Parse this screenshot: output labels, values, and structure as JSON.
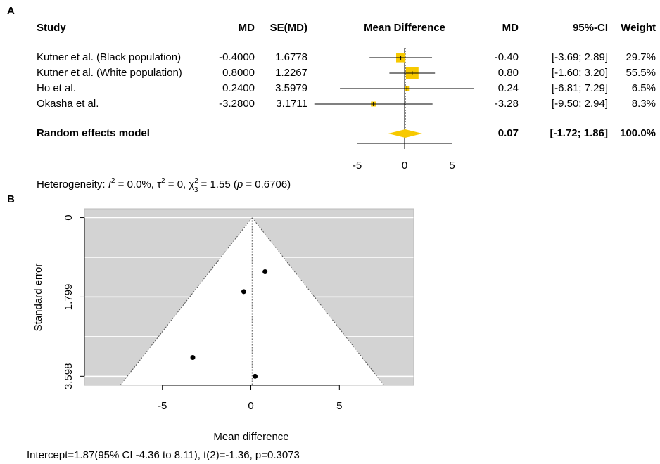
{
  "chart_data": [
    {
      "type": "forest",
      "panel_label": "A",
      "columns": [
        "Study",
        "MD",
        "SE(MD)",
        "Mean Difference",
        "MD",
        "95%-CI",
        "Weight"
      ],
      "categories": [
        "Kutner et al. (Black population)",
        "Kutner et al. (White population)",
        "Ho et al.",
        "Okasha et al."
      ],
      "md": [
        -0.4,
        0.8,
        0.24,
        -3.28
      ],
      "md_labels": [
        "-0.4000",
        "0.8000",
        "0.2400",
        "-3.2800"
      ],
      "md_labels_short": [
        "-0.40",
        "0.80",
        "0.24",
        "-3.28"
      ],
      "se": [
        1.6778,
        1.2267,
        3.5979,
        3.1711
      ],
      "ci_lower": [
        -3.69,
        -1.6,
        -6.81,
        -9.5
      ],
      "ci_upper": [
        2.89,
        3.2,
        7.29,
        2.94
      ],
      "ci_labels": [
        "[-3.69; 2.89]",
        "[-1.60; 3.20]",
        "[-6.81; 7.29]",
        "[-9.50; 2.94]"
      ],
      "weights": [
        29.7,
        55.5,
        6.5,
        8.3
      ],
      "weight_labels": [
        "29.7%",
        "55.5%",
        "6.5%",
        "8.3%"
      ],
      "pooled": {
        "name": "Random effects model",
        "md": 0.07,
        "md_label": "0.07",
        "ci_lower": -1.72,
        "ci_upper": 1.86,
        "ci_label": "[-1.72; 1.86]",
        "weight": 100,
        "weight_label": "100.0%"
      },
      "xlim": [
        -5,
        5
      ],
      "xticks": [
        -5,
        0,
        5
      ],
      "color": "#f7c900",
      "heterogeneity": [
        {
          "text": "Heterogeneity: "
        },
        {
          "text": "I",
          "format": "italic"
        },
        {
          "text": "2",
          "format": "sup"
        },
        {
          "text": " = 0.0%, "
        },
        {
          "text": "τ"
        },
        {
          "text": "2",
          "format": "sup"
        },
        {
          "text": " = 0, "
        },
        {
          "text": "χ"
        },
        {
          "text": "2",
          "format": "sup"
        },
        {
          "text": "3",
          "format": "sub"
        },
        {
          "text": " = 1.55 ("
        },
        {
          "text": "p",
          "format": "italic"
        },
        {
          "text": " = 0.6706)"
        }
      ]
    },
    {
      "type": "funnel",
      "panel_label": "B",
      "x": [
        -0.4,
        0.8,
        0.24,
        -3.28
      ],
      "values": [
        1.6778,
        1.2267,
        3.5979,
        3.1711
      ],
      "center": 0.07,
      "z": 1.96,
      "xlim": [
        -9.4,
        9.2
      ],
      "xticks": [
        -5,
        0,
        5
      ],
      "ylim": [
        -0.2,
        3.8
      ],
      "yticks": [
        0,
        1.799,
        3.598
      ],
      "y_reversed": true,
      "grid_y": [
        0,
        0.8995,
        1.799,
        2.6985,
        3.598
      ],
      "xlabel": "Mean difference",
      "ylabel": "Standard error",
      "note": "Intercept=1.87(95% CI -4.36 to 8.11), t(2)=-1.36, p=0.3073",
      "background": "#d3d3d3",
      "color": "#000000"
    }
  ]
}
